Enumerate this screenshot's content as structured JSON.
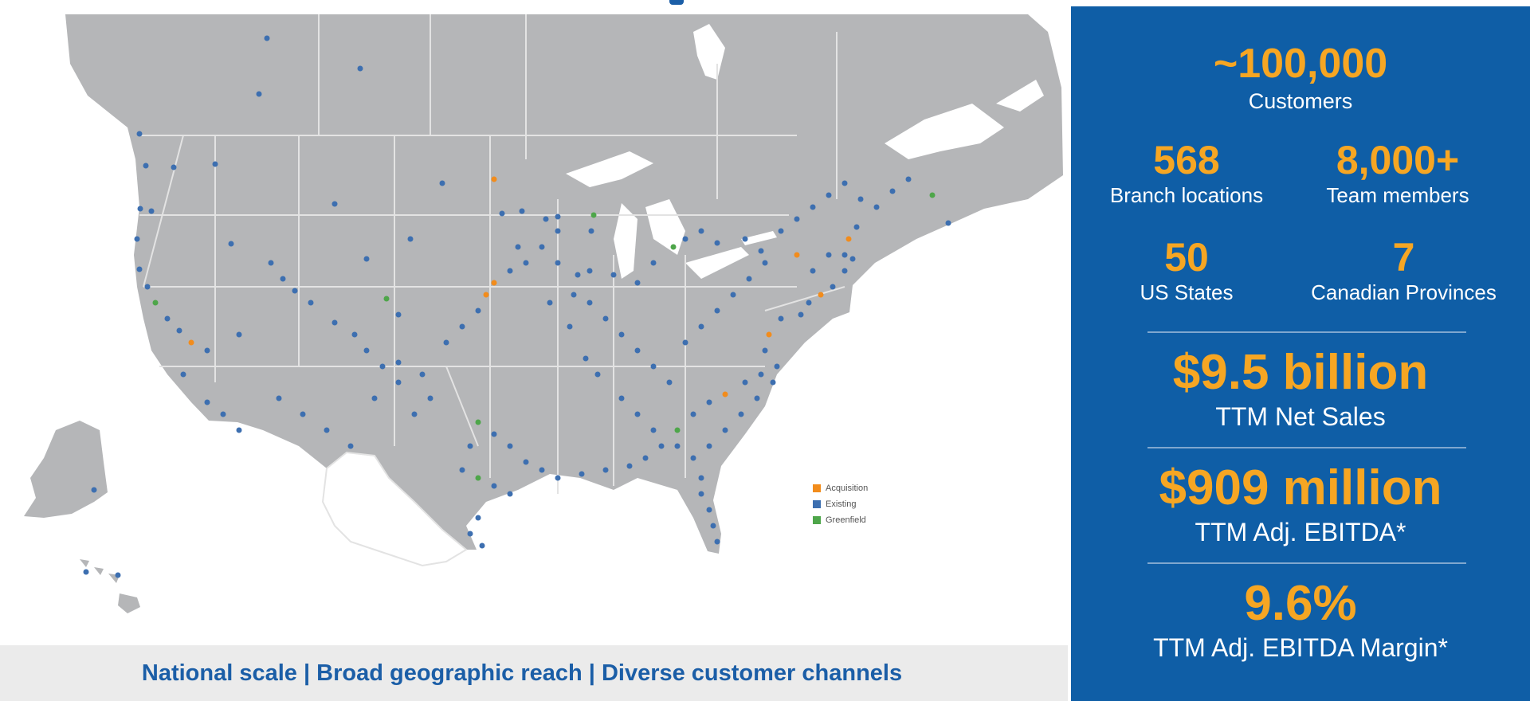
{
  "footer": {
    "tagline": "National scale | Broad geographic reach | Diverse customer channels"
  },
  "map": {
    "legend": [
      {
        "label": "Acquisition",
        "color": "#f28c1c"
      },
      {
        "label": "Existing",
        "color": "#3d6fb0"
      },
      {
        "label": "Greenfield",
        "color": "#4ea64a"
      }
    ],
    "land_color": "#b5b6b8",
    "border_color": "#e3e3e3"
  },
  "stats": {
    "customers": {
      "value": "~100,000",
      "label": "Customers"
    },
    "branches": {
      "value": "568",
      "label": "Branch locations"
    },
    "team": {
      "value": "8,000+",
      "label": "Team members"
    },
    "states": {
      "value": "50",
      "label": "US States"
    },
    "provinces": {
      "value": "7",
      "label": "Canadian Provinces"
    },
    "net_sales": {
      "value": "$9.5 billion",
      "label": "TTM Net Sales"
    },
    "ebitda": {
      "value": "$909 million",
      "label": "TTM Adj. EBITDA*"
    },
    "margin": {
      "value": "9.6%",
      "label": "TTM Adj. EBITDA Margin*"
    }
  },
  "colors": {
    "panel": "#0f5ea6",
    "accent": "#f6a623",
    "footer_text": "#1b5ea7"
  }
}
